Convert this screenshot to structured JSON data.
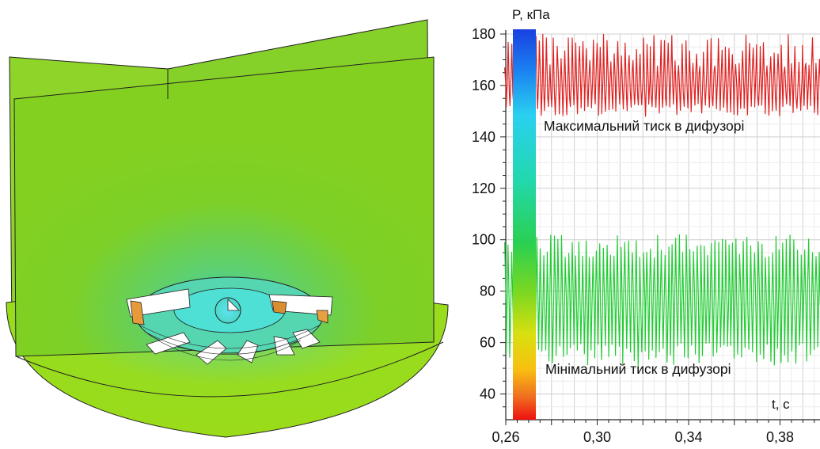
{
  "chart_data": {
    "type": "line",
    "ylabel": "P, кПа",
    "xlabel": "t, с",
    "ylim": [
      30,
      180
    ],
    "xlim": [
      0.26,
      0.3975
    ],
    "yticks": [
      "180",
      "160",
      "140",
      "120",
      "100",
      "80",
      "60",
      "40"
    ],
    "ytick_values": [
      180,
      160,
      140,
      120,
      100,
      80,
      60,
      40
    ],
    "xticks": [
      "0,26",
      "0,30",
      "0,34",
      "0,38"
    ],
    "xtick_values": [
      0.26,
      0.3,
      0.34,
      0.38
    ],
    "grid": true,
    "colorbar": true,
    "series": [
      {
        "color": "#e02020",
        "annotation": "Максимальний тиск в дифузорі",
        "t_start": 0.2595,
        "period": 0.00155,
        "mean": 161,
        "amplitude": [
          15,
          20
        ],
        "min_range": [
          148,
          153
        ],
        "max_range": [
          167,
          180
        ]
      },
      {
        "color": "#22cc33",
        "annotation": "Мінімальний тиск в дифузорі",
        "t_start": 0.2595,
        "period": 0.00155,
        "mean": 77,
        "amplitude": [
          20,
          26
        ],
        "min_range": [
          51,
          60
        ],
        "max_range": [
          93,
          102
        ]
      }
    ]
  },
  "colors": {
    "background": "#ffffff",
    "grid": "#d9d9d9",
    "scene_green": "#8ad31a",
    "max_line": "#e02020",
    "min_line": "#22cc33"
  }
}
